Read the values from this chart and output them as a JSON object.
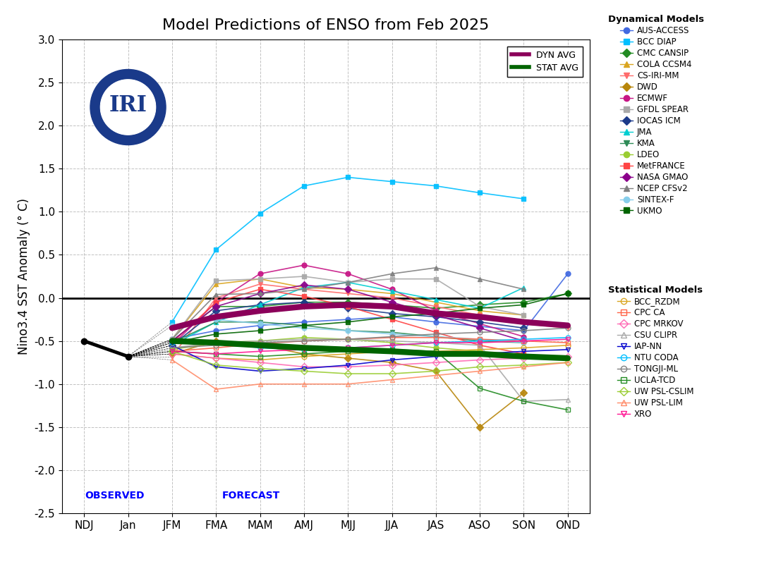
{
  "title": "Model Predictions of ENSO from Feb 2025",
  "ylabel": "Nino3.4 SST Anomaly (° C)",
  "ylim": [
    -2.5,
    3.0
  ],
  "xticks": [
    "NDJ",
    "Jan",
    "JFM",
    "FMA",
    "MAM",
    "AMJ",
    "MJJ",
    "JJA",
    "JAS",
    "ASO",
    "SON",
    "OND"
  ],
  "observed_label": "OBSERVED",
  "forecast_label": "FORECAST",
  "obs_ndj": -0.5,
  "obs_jan": -0.68,
  "dyn_avg": [
    null,
    null,
    -0.35,
    -0.22,
    -0.15,
    -0.1,
    -0.08,
    -0.1,
    -0.18,
    -0.22,
    -0.28,
    -0.32
  ],
  "stat_avg": [
    null,
    null,
    -0.5,
    -0.52,
    -0.55,
    -0.58,
    -0.6,
    -0.62,
    -0.65,
    -0.65,
    -0.68,
    -0.7
  ],
  "dynamical_models": {
    "AUS-ACCESS": {
      "color": "#4169E1",
      "marker": "o",
      "values": [
        null,
        null,
        -0.48,
        -0.38,
        -0.32,
        -0.28,
        -0.25,
        -0.22,
        -0.28,
        -0.33,
        -0.38,
        0.28
      ]
    },
    "BCC DIAP": {
      "color": "#00BFFF",
      "marker": "s",
      "values": [
        null,
        null,
        -0.28,
        0.56,
        0.98,
        1.3,
        1.4,
        1.35,
        1.3,
        1.22,
        1.15,
        null
      ]
    },
    "CMC CANSIP": {
      "color": "#228B22",
      "marker": "D",
      "values": [
        null,
        null,
        -0.5,
        -0.1,
        -0.1,
        -0.05,
        -0.05,
        -0.08,
        -0.12,
        -0.08,
        -0.05,
        0.05
      ]
    },
    "COLA CCSM4": {
      "color": "#DAA520",
      "marker": "^",
      "values": [
        null,
        null,
        -0.48,
        0.16,
        0.22,
        0.12,
        0.1,
        0.05,
        -0.05,
        -0.15,
        -0.2,
        null
      ]
    },
    "CS-IRI-MM": {
      "color": "#FF6B6B",
      "marker": "v",
      "values": [
        null,
        null,
        -0.68,
        0.0,
        0.16,
        0.1,
        0.05,
        0.0,
        -0.1,
        -0.2,
        -0.3,
        -0.35
      ]
    },
    "DWD": {
      "color": "#B8860B",
      "marker": "D",
      "values": [
        null,
        null,
        -0.65,
        -0.5,
        -0.55,
        -0.65,
        -0.7,
        -0.75,
        -0.85,
        -1.5,
        -1.1,
        null
      ]
    },
    "ECMWF": {
      "color": "#C71585",
      "marker": "o",
      "values": [
        null,
        null,
        -0.55,
        -0.05,
        0.28,
        0.38,
        0.28,
        0.1,
        -0.15,
        -0.3,
        -0.45,
        null
      ]
    },
    "GFDL SPEAR": {
      "color": "#A9A9A9",
      "marker": "s",
      "values": [
        null,
        null,
        -0.48,
        0.2,
        0.22,
        0.25,
        0.18,
        0.22,
        0.22,
        -0.1,
        -0.2,
        null
      ]
    },
    "IOCAS ICM": {
      "color": "#1C3A8A",
      "marker": "D",
      "values": [
        null,
        null,
        -0.55,
        -0.15,
        -0.08,
        -0.05,
        -0.12,
        -0.18,
        -0.22,
        -0.28,
        -0.35,
        null
      ]
    },
    "JMA": {
      "color": "#00CED1",
      "marker": "^",
      "values": [
        null,
        null,
        -0.55,
        -0.28,
        -0.08,
        0.12,
        0.18,
        0.08,
        -0.02,
        -0.12,
        0.12,
        null
      ]
    },
    "KMA": {
      "color": "#2E8B57",
      "marker": "v",
      "values": [
        null,
        null,
        -0.52,
        -0.28,
        -0.28,
        -0.32,
        -0.38,
        -0.4,
        -0.45,
        -0.5,
        -0.52,
        null
      ]
    },
    "LDEO": {
      "color": "#9ACD32",
      "marker": "o",
      "values": [
        null,
        null,
        -0.6,
        -0.52,
        -0.5,
        -0.46,
        -0.48,
        -0.52,
        -0.58,
        -0.62,
        -0.68,
        null
      ]
    },
    "MetFRANCE": {
      "color": "#FF4444",
      "marker": "s",
      "values": [
        null,
        null,
        -0.52,
        -0.05,
        0.1,
        0.02,
        -0.1,
        -0.25,
        -0.4,
        -0.55,
        -0.65,
        null
      ]
    },
    "NASA GMAO": {
      "color": "#8B008B",
      "marker": "D",
      "values": [
        null,
        null,
        -0.5,
        -0.1,
        0.05,
        0.15,
        0.1,
        -0.05,
        -0.2,
        -0.35,
        -0.5,
        null
      ]
    },
    "NCEP CFSv2": {
      "color": "#808080",
      "marker": "^",
      "values": [
        null,
        null,
        -0.48,
        0.04,
        0.05,
        0.1,
        0.18,
        0.28,
        0.35,
        0.22,
        0.1,
        null
      ]
    },
    "SINTEX-F": {
      "color": "#87CEEB",
      "marker": "o",
      "values": [
        null,
        null,
        -0.32,
        -0.25,
        -0.3,
        -0.35,
        -0.38,
        -0.42,
        -0.45,
        -0.48,
        -0.52,
        null
      ]
    },
    "UKMO": {
      "color": "#006400",
      "marker": "s",
      "values": [
        null,
        null,
        -0.52,
        -0.42,
        -0.38,
        -0.32,
        -0.28,
        -0.22,
        -0.18,
        -0.12,
        -0.08,
        0.05
      ]
    }
  },
  "statistical_models": {
    "BCC_RZDM": {
      "color": "#DAA520",
      "marker": "o",
      "values": [
        null,
        null,
        -0.65,
        -0.7,
        -0.72,
        -0.68,
        -0.65,
        -0.62,
        -0.62,
        -0.6,
        -0.58,
        -0.55
      ]
    },
    "CPC CA": {
      "color": "#FF6347",
      "marker": "s",
      "values": [
        null,
        null,
        -0.62,
        -0.58,
        -0.53,
        -0.5,
        -0.48,
        -0.46,
        -0.46,
        -0.48,
        -0.5,
        -0.52
      ]
    },
    "CPC MRKOV": {
      "color": "#FF69B4",
      "marker": "D",
      "values": [
        null,
        null,
        -0.65,
        -0.7,
        -0.75,
        -0.8,
        -0.8,
        -0.78,
        -0.75,
        -0.72,
        -0.7,
        -0.68
      ]
    },
    "CSU CLIPR": {
      "color": "#A9A9A9",
      "marker": "^",
      "values": [
        null,
        null,
        -0.58,
        -0.52,
        -0.5,
        -0.48,
        -0.48,
        -0.5,
        -0.52,
        -0.55,
        -1.2,
        -1.18
      ]
    },
    "IAP-NN": {
      "color": "#0000CD",
      "marker": "v",
      "values": [
        null,
        null,
        -0.55,
        -0.8,
        -0.85,
        -0.82,
        -0.78,
        -0.72,
        -0.68,
        -0.65,
        -0.62,
        -0.6
      ]
    },
    "NTU CODA": {
      "color": "#00BFFF",
      "marker": "o",
      "values": [
        null,
        null,
        -0.52,
        -0.52,
        -0.58,
        -0.6,
        -0.58,
        -0.55,
        -0.52,
        -0.5,
        -0.48,
        -0.46
      ]
    },
    "TONGJI-ML": {
      "color": "#808080",
      "marker": "o",
      "values": [
        null,
        null,
        -0.58,
        -0.55,
        -0.52,
        -0.5,
        -0.48,
        -0.45,
        -0.42,
        -0.4,
        -0.38,
        -0.35
      ]
    },
    "UCLA-TCD": {
      "color": "#228B22",
      "marker": "s",
      "values": [
        null,
        null,
        -0.62,
        -0.65,
        -0.68,
        -0.65,
        -0.62,
        -0.6,
        -0.62,
        -1.05,
        -1.2,
        -1.3
      ]
    },
    "UW PSL-CSLIM": {
      "color": "#9ACD32",
      "marker": "D",
      "values": [
        null,
        null,
        -0.62,
        -0.78,
        -0.82,
        -0.85,
        -0.88,
        -0.88,
        -0.85,
        -0.8,
        -0.78,
        -0.75
      ]
    },
    "UW PSL-LIM": {
      "color": "#FF8C69",
      "marker": "^",
      "values": [
        null,
        null,
        -0.72,
        -1.06,
        -1.0,
        -1.0,
        -1.0,
        -0.95,
        -0.9,
        -0.85,
        -0.8,
        -0.75
      ]
    },
    "XRO": {
      "color": "#FF1493",
      "marker": "v",
      "values": [
        null,
        null,
        -0.62,
        -0.65,
        -0.62,
        -0.6,
        -0.58,
        -0.55,
        -0.52,
        -0.52,
        -0.5,
        -0.48
      ]
    }
  },
  "logo_color": "#1A3A8A",
  "dyn_avg_color": "#8B005A",
  "stat_avg_color": "#006400"
}
